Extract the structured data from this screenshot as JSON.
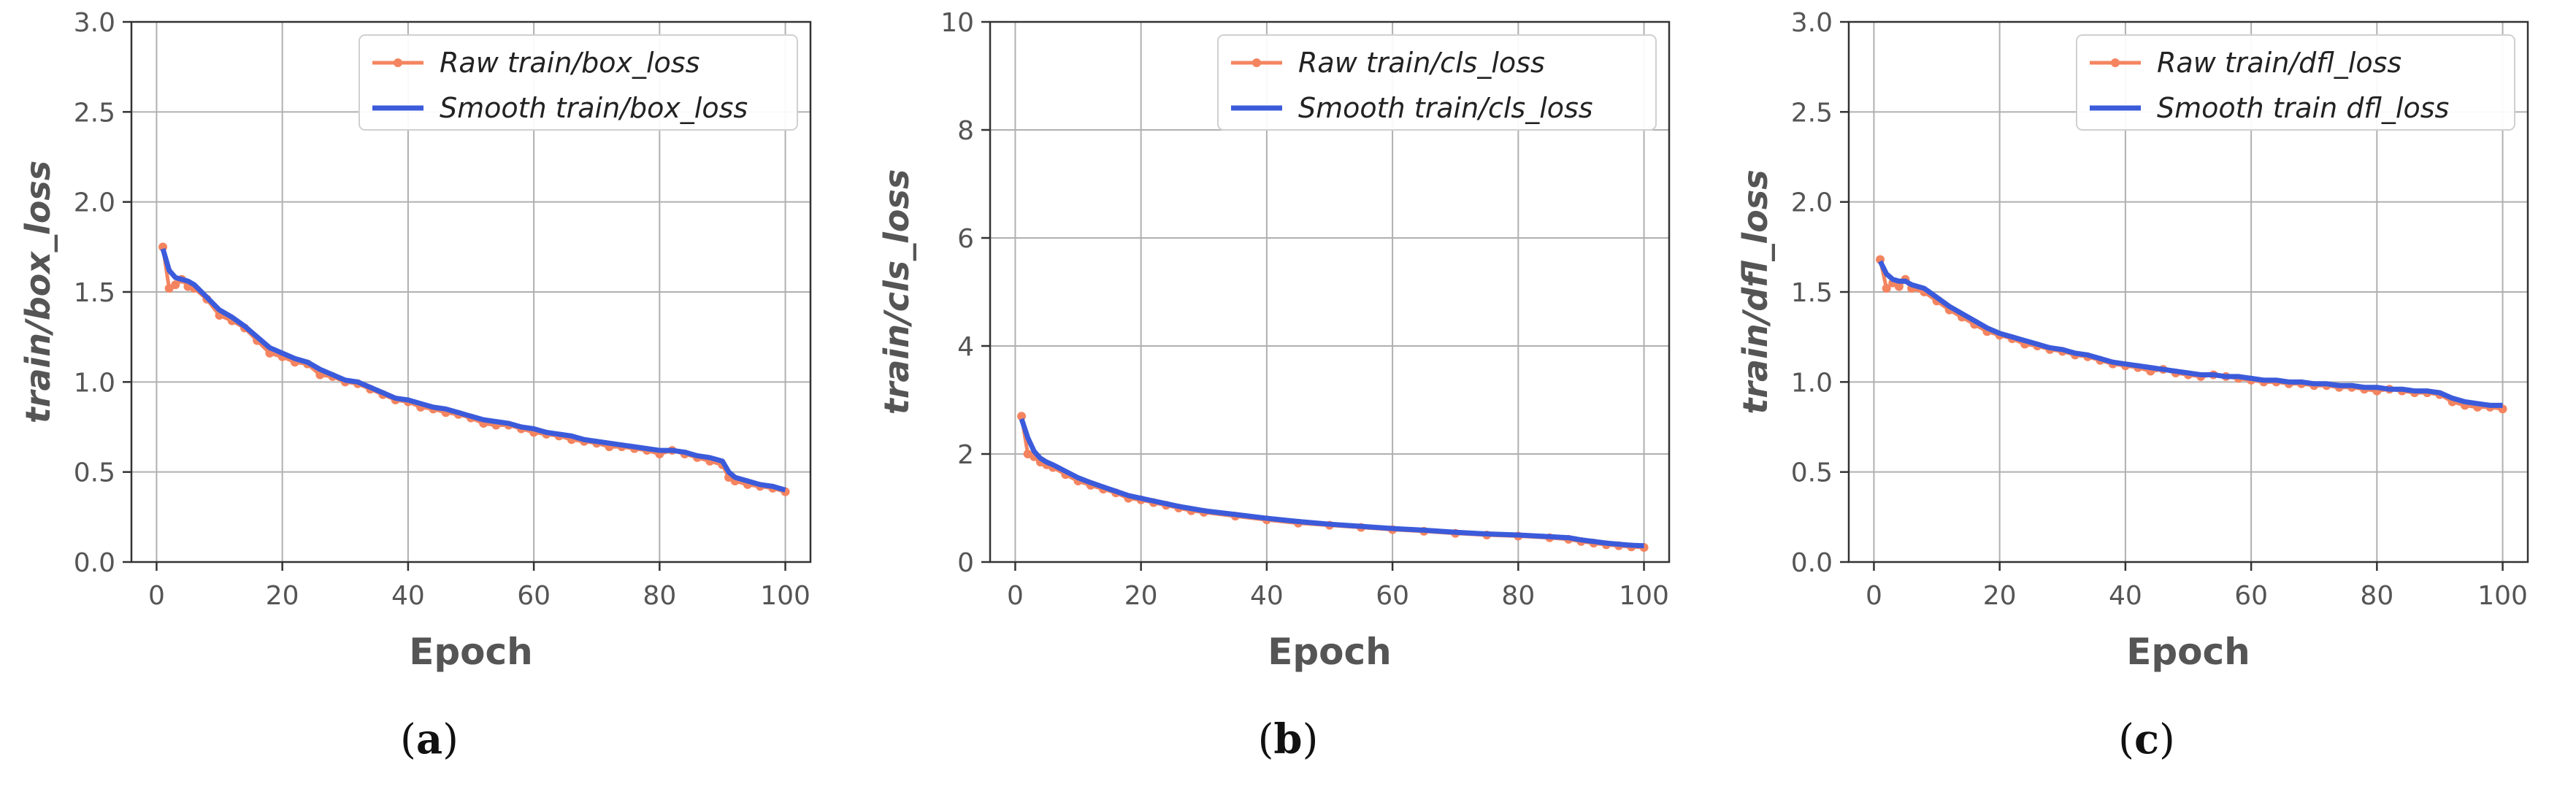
{
  "colors": {
    "raw": "#F4845F",
    "smooth": "#3B5BDB",
    "grid": "#b0b0b0",
    "axis": "#333333"
  },
  "chart_data": [
    {
      "type": "line",
      "panel": "(a)",
      "caption_label": "a",
      "ylabel": "train/box_loss",
      "xlabel": "Epoch",
      "xlim": [
        0,
        100
      ],
      "ylim": [
        0.0,
        3.0
      ],
      "xticks": [
        0,
        20,
        40,
        60,
        80,
        100
      ],
      "yticks": [
        0.0,
        0.5,
        1.0,
        1.5,
        2.0,
        2.5,
        3.0
      ],
      "ytick_labels": [
        "0.0",
        "0.5",
        "1.0",
        "1.5",
        "2.0",
        "2.5",
        "3.0"
      ],
      "legend_position": "top-right",
      "grid": true,
      "series": [
        {
          "name": "Raw train/box_loss",
          "style": "raw",
          "x": [
            1,
            2,
            3,
            4,
            5,
            6,
            8,
            10,
            12,
            14,
            16,
            18,
            20,
            22,
            24,
            26,
            28,
            30,
            32,
            34,
            36,
            38,
            40,
            42,
            44,
            46,
            48,
            50,
            52,
            54,
            56,
            58,
            60,
            62,
            64,
            66,
            68,
            70,
            72,
            74,
            76,
            78,
            80,
            82,
            84,
            86,
            88,
            90,
            91,
            92,
            94,
            96,
            98,
            100
          ],
          "y": [
            1.75,
            1.52,
            1.54,
            1.57,
            1.53,
            1.52,
            1.46,
            1.37,
            1.34,
            1.3,
            1.23,
            1.16,
            1.14,
            1.11,
            1.1,
            1.04,
            1.03,
            1.0,
            0.99,
            0.96,
            0.93,
            0.9,
            0.89,
            0.86,
            0.85,
            0.83,
            0.82,
            0.8,
            0.77,
            0.76,
            0.76,
            0.74,
            0.72,
            0.71,
            0.7,
            0.68,
            0.67,
            0.66,
            0.64,
            0.64,
            0.63,
            0.62,
            0.6,
            0.62,
            0.6,
            0.58,
            0.56,
            0.54,
            0.47,
            0.45,
            0.43,
            0.42,
            0.41,
            0.39
          ]
        },
        {
          "name": "Smooth train/box_loss",
          "style": "smooth",
          "x": [
            1,
            2,
            3,
            4,
            5,
            6,
            8,
            10,
            12,
            14,
            16,
            18,
            20,
            22,
            24,
            26,
            28,
            30,
            32,
            34,
            36,
            38,
            40,
            42,
            44,
            46,
            48,
            50,
            52,
            54,
            56,
            58,
            60,
            62,
            64,
            66,
            68,
            70,
            72,
            74,
            76,
            78,
            80,
            82,
            84,
            86,
            88,
            90,
            91,
            92,
            94,
            96,
            98,
            100
          ],
          "y": [
            1.74,
            1.62,
            1.58,
            1.57,
            1.56,
            1.54,
            1.47,
            1.4,
            1.36,
            1.31,
            1.25,
            1.19,
            1.16,
            1.13,
            1.11,
            1.07,
            1.04,
            1.01,
            1.0,
            0.97,
            0.94,
            0.91,
            0.9,
            0.88,
            0.86,
            0.85,
            0.83,
            0.81,
            0.79,
            0.78,
            0.77,
            0.75,
            0.74,
            0.72,
            0.71,
            0.7,
            0.68,
            0.67,
            0.66,
            0.65,
            0.64,
            0.63,
            0.62,
            0.62,
            0.61,
            0.59,
            0.58,
            0.56,
            0.5,
            0.47,
            0.45,
            0.43,
            0.42,
            0.4
          ]
        }
      ]
    },
    {
      "type": "line",
      "panel": "(b)",
      "caption_label": "b",
      "ylabel": "train/cls_loss",
      "xlabel": "Epoch",
      "xlim": [
        0,
        100
      ],
      "ylim": [
        0,
        10
      ],
      "xticks": [
        0,
        20,
        40,
        60,
        80,
        100
      ],
      "yticks": [
        0,
        2,
        4,
        6,
        8,
        10
      ],
      "ytick_labels": [
        "0",
        "2",
        "4",
        "6",
        "8",
        "10"
      ],
      "legend_position": "top-right",
      "grid": true,
      "series": [
        {
          "name": "Raw train/cls_loss",
          "style": "raw",
          "x": [
            1,
            2,
            3,
            4,
            5,
            6,
            8,
            10,
            12,
            14,
            16,
            18,
            20,
            22,
            24,
            26,
            28,
            30,
            35,
            40,
            45,
            50,
            55,
            60,
            65,
            70,
            75,
            80,
            85,
            88,
            90,
            92,
            94,
            96,
            98,
            100
          ],
          "y": [
            2.7,
            2.0,
            1.95,
            1.85,
            1.8,
            1.75,
            1.62,
            1.5,
            1.42,
            1.35,
            1.28,
            1.18,
            1.15,
            1.1,
            1.05,
            1.0,
            0.95,
            0.92,
            0.85,
            0.78,
            0.72,
            0.68,
            0.64,
            0.6,
            0.57,
            0.53,
            0.5,
            0.48,
            0.45,
            0.42,
            0.38,
            0.35,
            0.32,
            0.3,
            0.28,
            0.27
          ]
        },
        {
          "name": "Smooth train/cls_loss",
          "style": "smooth",
          "x": [
            1,
            2,
            3,
            4,
            5,
            6,
            8,
            10,
            12,
            14,
            16,
            18,
            20,
            22,
            24,
            26,
            28,
            30,
            35,
            40,
            45,
            50,
            55,
            60,
            65,
            70,
            75,
            80,
            85,
            88,
            90,
            92,
            94,
            96,
            98,
            100
          ],
          "y": [
            2.65,
            2.3,
            2.05,
            1.92,
            1.85,
            1.8,
            1.68,
            1.56,
            1.47,
            1.39,
            1.31,
            1.23,
            1.18,
            1.13,
            1.08,
            1.03,
            0.99,
            0.95,
            0.88,
            0.81,
            0.75,
            0.7,
            0.66,
            0.62,
            0.59,
            0.55,
            0.52,
            0.5,
            0.47,
            0.45,
            0.41,
            0.38,
            0.35,
            0.33,
            0.31,
            0.3
          ]
        }
      ]
    },
    {
      "type": "line",
      "panel": "(c)",
      "caption_label": "c",
      "ylabel": "train/dfl_loss",
      "xlabel": "Epoch",
      "xlim": [
        0,
        100
      ],
      "ylim": [
        0.0,
        3.0
      ],
      "xticks": [
        0,
        20,
        40,
        60,
        80,
        100
      ],
      "yticks": [
        0.0,
        0.5,
        1.0,
        1.5,
        2.0,
        2.5,
        3.0
      ],
      "ytick_labels": [
        "0.0",
        "0.5",
        "1.0",
        "1.5",
        "2.0",
        "2.5",
        "3.0"
      ],
      "legend_position": "top-right",
      "grid": true,
      "series": [
        {
          "name": "Raw train/dfl_loss",
          "style": "raw",
          "x": [
            1,
            2,
            3,
            4,
            5,
            6,
            8,
            10,
            12,
            14,
            16,
            18,
            20,
            22,
            24,
            26,
            28,
            30,
            32,
            34,
            36,
            38,
            40,
            42,
            44,
            46,
            48,
            50,
            52,
            54,
            56,
            58,
            60,
            62,
            64,
            66,
            68,
            70,
            72,
            74,
            76,
            78,
            80,
            82,
            84,
            86,
            88,
            90,
            92,
            94,
            96,
            98,
            100
          ],
          "y": [
            1.68,
            1.52,
            1.55,
            1.53,
            1.57,
            1.52,
            1.5,
            1.45,
            1.4,
            1.36,
            1.32,
            1.28,
            1.26,
            1.24,
            1.21,
            1.2,
            1.18,
            1.17,
            1.15,
            1.14,
            1.12,
            1.1,
            1.09,
            1.08,
            1.06,
            1.07,
            1.05,
            1.04,
            1.03,
            1.04,
            1.03,
            1.02,
            1.01,
            1.0,
            1.0,
            0.99,
            0.99,
            0.98,
            0.98,
            0.97,
            0.97,
            0.96,
            0.95,
            0.96,
            0.95,
            0.94,
            0.94,
            0.93,
            0.89,
            0.87,
            0.86,
            0.86,
            0.85
          ]
        },
        {
          "name": "Smooth train dfl_loss",
          "style": "smooth",
          "x": [
            1,
            2,
            3,
            4,
            5,
            6,
            8,
            10,
            12,
            14,
            16,
            18,
            20,
            22,
            24,
            26,
            28,
            30,
            32,
            34,
            36,
            38,
            40,
            42,
            44,
            46,
            48,
            50,
            52,
            54,
            56,
            58,
            60,
            62,
            64,
            66,
            68,
            70,
            72,
            74,
            76,
            78,
            80,
            82,
            84,
            86,
            88,
            90,
            92,
            94,
            96,
            98,
            100
          ],
          "y": [
            1.67,
            1.6,
            1.57,
            1.56,
            1.56,
            1.54,
            1.52,
            1.47,
            1.42,
            1.38,
            1.34,
            1.3,
            1.27,
            1.25,
            1.23,
            1.21,
            1.19,
            1.18,
            1.16,
            1.15,
            1.13,
            1.11,
            1.1,
            1.09,
            1.08,
            1.07,
            1.06,
            1.05,
            1.04,
            1.04,
            1.03,
            1.03,
            1.02,
            1.01,
            1.01,
            1.0,
            1.0,
            0.99,
            0.99,
            0.98,
            0.98,
            0.97,
            0.97,
            0.96,
            0.96,
            0.95,
            0.95,
            0.94,
            0.91,
            0.89,
            0.88,
            0.87,
            0.87
          ]
        }
      ]
    }
  ]
}
